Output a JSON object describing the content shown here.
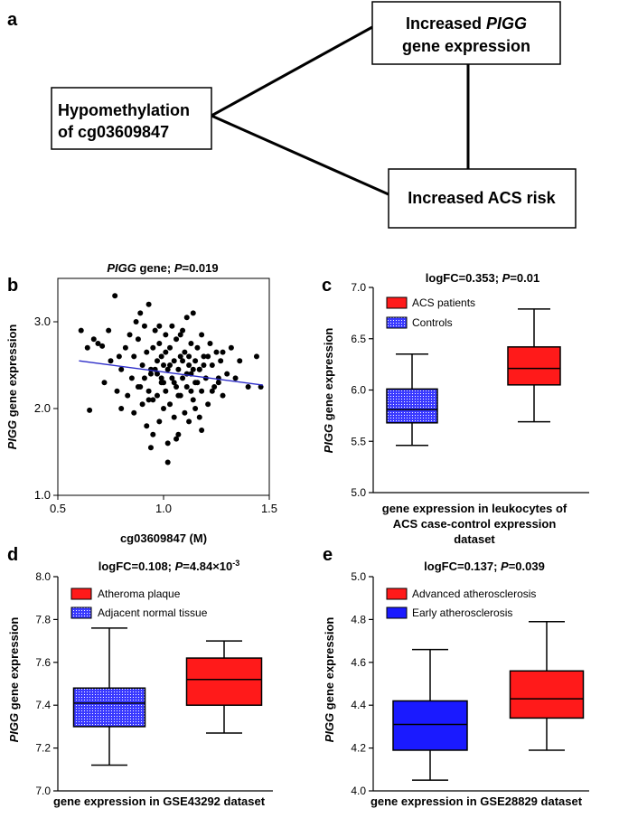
{
  "panel_a": {
    "letter": "a",
    "box_left_lines": [
      "Hypomethylation",
      "of cg03609847"
    ],
    "box_top_pre": "Increased ",
    "box_top_italic": "PIGG",
    "box_top_line2": "gene expression",
    "box_bottom": "Increased ACS risk"
  },
  "ylabel_italic": "PIGG",
  "ylabel_rest": " gene expression",
  "chart_data": [
    {
      "panel": "b",
      "type": "scatter",
      "title_italic": "PIGG",
      "title_rest": " gene; ",
      "title_p_italic": "P",
      "title_p_val": "=0.019",
      "xlabel": "cg03609847 (M)",
      "ylabel": "PIGG gene expression",
      "xlim": [
        0.5,
        1.5
      ],
      "ylim": [
        1.0,
        3.5
      ],
      "x_ticks": [
        0.5,
        1.0,
        1.5
      ],
      "x_tick_labels": [
        "0.5",
        "1.0",
        "1.5"
      ],
      "y_ticks": [
        1.0,
        2.0,
        3.0
      ],
      "y_tick_labels": [
        "1.0",
        "2.0",
        "3.0"
      ],
      "trend_line": {
        "x": [
          0.6,
          1.47
        ],
        "y": [
          2.55,
          2.27
        ],
        "color": "#2c2cc8"
      },
      "points_x": [
        0.61,
        0.64,
        0.65,
        0.67,
        0.69,
        0.71,
        0.72,
        0.74,
        0.75,
        0.77,
        0.78,
        0.79,
        0.8,
        0.8,
        0.82,
        0.83,
        0.84,
        0.85,
        0.86,
        0.86,
        0.87,
        0.88,
        0.88,
        0.89,
        0.9,
        0.9,
        0.91,
        0.91,
        0.92,
        0.92,
        0.93,
        0.93,
        0.94,
        0.94,
        0.95,
        0.95,
        0.96,
        0.96,
        0.97,
        0.97,
        0.98,
        0.98,
        0.99,
        0.99,
        1.0,
        1.0,
        1.01,
        1.01,
        1.02,
        1.02,
        1.03,
        1.03,
        1.04,
        1.04,
        1.05,
        1.05,
        1.06,
        1.06,
        1.07,
        1.07,
        1.08,
        1.08,
        1.09,
        1.09,
        1.1,
        1.1,
        1.11,
        1.11,
        1.12,
        1.12,
        1.13,
        1.13,
        1.14,
        1.14,
        1.15,
        1.15,
        1.16,
        1.16,
        1.17,
        1.17,
        1.18,
        1.18,
        1.19,
        1.2,
        1.21,
        1.22,
        1.23,
        1.24,
        1.25,
        1.26,
        1.27,
        1.28,
        1.3,
        1.32,
        1.34,
        1.36,
        1.4,
        1.44,
        0.93,
        0.97,
        1.01,
        1.05,
        1.09,
        1.13,
        1.17,
        1.21,
        0.95,
        0.99,
        1.03,
        1.07,
        1.11,
        1.15,
        1.19,
        1.23,
        0.89,
        0.94,
        1.0,
        1.06,
        1.12,
        1.18,
        1.26,
        0.98,
        1.02,
        1.08,
        1.14,
        1.28,
        1.46
      ],
      "points_y": [
        2.9,
        2.7,
        1.98,
        2.8,
        2.75,
        2.72,
        2.3,
        2.9,
        2.55,
        3.3,
        2.2,
        2.6,
        2.0,
        2.45,
        2.7,
        2.15,
        2.85,
        2.35,
        2.6,
        1.95,
        3.0,
        2.25,
        2.8,
        3.1,
        2.5,
        2.05,
        2.35,
        2.95,
        1.8,
        2.65,
        2.2,
        3.2,
        2.4,
        1.55,
        2.7,
        2.1,
        2.45,
        2.9,
        2.15,
        2.55,
        1.85,
        2.75,
        2.3,
        2.6,
        2.0,
        2.5,
        2.85,
        2.2,
        1.6,
        2.45,
        2.7,
        2.05,
        2.35,
        2.95,
        1.9,
        2.55,
        2.25,
        2.8,
        1.7,
        2.45,
        2.6,
        2.15,
        2.9,
        2.35,
        1.95,
        2.65,
        2.25,
        3.05,
        2.5,
        1.85,
        2.75,
        2.4,
        2.1,
        3.1,
        2.55,
        2.0,
        2.3,
        2.7,
        1.9,
        2.45,
        2.85,
        2.2,
        2.6,
        2.35,
        2.05,
        2.75,
        2.5,
        2.25,
        2.65,
        2.3,
        2.55,
        2.15,
        2.4,
        2.7,
        2.35,
        2.55,
        2.25,
        2.6,
        2.1,
        2.4,
        2.65,
        2.3,
        2.55,
        2.2,
        2.45,
        2.6,
        1.7,
        2.35,
        2.5,
        2.15,
        2.4,
        2.3,
        2.5,
        2.2,
        2.25,
        2.45,
        2.3,
        1.65,
        2.6,
        1.75,
        2.35,
        2.95,
        1.38,
        2.85,
        2.45,
        2.65,
        2.25
      ]
    },
    {
      "panel": "c",
      "type": "box",
      "title_pre": "logFC=0.353; ",
      "title_p_italic": "P",
      "title_p_val": "=0.01",
      "xlabel_lines": [
        "gene expression in leukocytes of",
        "ACS case-control expression",
        "dataset"
      ],
      "ylabel": "PIGG gene expression",
      "ylim": [
        5.0,
        7.0
      ],
      "y_ticks": [
        5.0,
        5.5,
        6.0,
        6.5,
        7.0
      ],
      "y_tick_labels": [
        "5.0",
        "5.5",
        "6.0",
        "6.5",
        "7.0"
      ],
      "series": [
        {
          "name": "Controls",
          "min": 5.46,
          "q1": 5.68,
          "median": 5.81,
          "q3": 6.01,
          "max": 6.35,
          "color": "#3a3aff",
          "hatched": true
        },
        {
          "name": "ACS patients",
          "min": 5.69,
          "q1": 6.05,
          "median": 6.21,
          "q3": 6.42,
          "max": 6.79,
          "color": "#ff1a1a",
          "hatched": false
        }
      ],
      "legend": [
        "ACS patients",
        "Controls"
      ]
    },
    {
      "panel": "d",
      "type": "box",
      "title_pre": "logFC=0.108; ",
      "title_p_italic": "P",
      "title_p_val": "=4.84×10",
      "title_sup": "-3",
      "xlabel_lines": [
        "gene expression in GSE43292 dataset"
      ],
      "ylabel": "PIGG gene expression",
      "ylim": [
        7.0,
        8.0
      ],
      "y_ticks": [
        7.0,
        7.2,
        7.4,
        7.6,
        7.8,
        8.0
      ],
      "y_tick_labels": [
        "7.0",
        "7.2",
        "7.4",
        "7.6",
        "7.8",
        "8.0"
      ],
      "series": [
        {
          "name": "Adjacent normal tissue",
          "min": 7.12,
          "q1": 7.3,
          "median": 7.41,
          "q3": 7.48,
          "max": 7.76,
          "color": "#3a3aff",
          "hatched": true
        },
        {
          "name": "Atheroma plaque",
          "min": 7.27,
          "q1": 7.4,
          "median": 7.52,
          "q3": 7.62,
          "max": 7.7,
          "color": "#ff1a1a",
          "hatched": false
        }
      ],
      "legend": [
        "Atheroma plaque",
        "Adjacent normal tissue"
      ]
    },
    {
      "panel": "e",
      "type": "box",
      "title_pre": "logFC=0.137; ",
      "title_p_italic": "P",
      "title_p_val": "=0.039",
      "xlabel_lines": [
        "gene expression in GSE28829 dataset"
      ],
      "ylabel": "PIGG gene expression",
      "ylim": [
        4.0,
        5.0
      ],
      "y_ticks": [
        4.0,
        4.2,
        4.4,
        4.6,
        4.8,
        5.0
      ],
      "y_tick_labels": [
        "4.0",
        "4.2",
        "4.4",
        "4.6",
        "4.8",
        "5.0"
      ],
      "series": [
        {
          "name": "Early atherosclerosis",
          "min": 4.05,
          "q1": 4.19,
          "median": 4.31,
          "q3": 4.42,
          "max": 4.66,
          "color": "#1a1aff",
          "hatched": false
        },
        {
          "name": "Advanced atherosclerosis",
          "min": 4.19,
          "q1": 4.34,
          "median": 4.43,
          "q3": 4.56,
          "max": 4.79,
          "color": "#ff1a1a",
          "hatched": false
        }
      ],
      "legend": [
        "Advanced atherosclerosis",
        "Early atherosclerosis"
      ]
    }
  ]
}
